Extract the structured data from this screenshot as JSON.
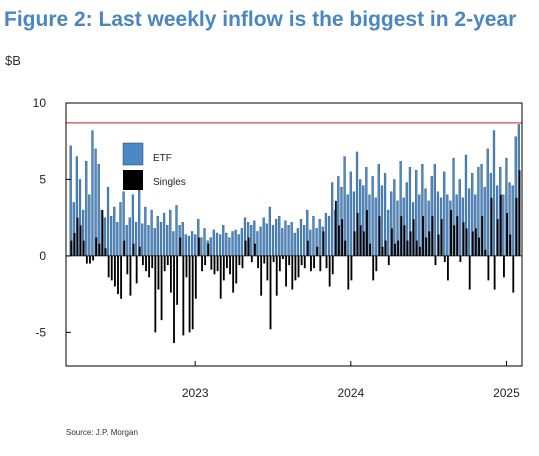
{
  "title": "Figure 2: Last weekly inflow is the biggest in 2-year",
  "unit_label": "$B",
  "source": "Source: J.P. Morgan",
  "colors": {
    "title": "#4a86c0",
    "etf": "#4b89c4",
    "singles": "#000000",
    "reference_line": "#c0504d",
    "axis": "#000000"
  },
  "chart_data": {
    "type": "bar",
    "title": "Figure 2: Last weekly inflow is the biggest in 2-year",
    "ylabel": "$B",
    "xlabel": "",
    "ylim": [
      -7.2,
      10
    ],
    "xlim": [
      2022.17,
      2025.1
    ],
    "yticks": [
      10,
      5,
      0,
      -5
    ],
    "xticks": [
      {
        "x": 2023,
        "label": "2023"
      },
      {
        "x": 2024,
        "label": "2024"
      },
      {
        "x": 2025,
        "label": "2025"
      }
    ],
    "reference_line": {
      "y": 8.7
    },
    "legend": {
      "position": "top-left",
      "entries": [
        "ETF",
        "Singles"
      ]
    },
    "grid": false,
    "x": [
      2022.2,
      2022.22,
      2022.24,
      2022.26,
      2022.28,
      2022.3,
      2022.32,
      2022.34,
      2022.36,
      2022.38,
      2022.4,
      2022.42,
      2022.44,
      2022.46,
      2022.48,
      2022.5,
      2022.52,
      2022.54,
      2022.56,
      2022.58,
      2022.6,
      2022.62,
      2022.64,
      2022.66,
      2022.68,
      2022.7,
      2022.72,
      2022.74,
      2022.76,
      2022.78,
      2022.8,
      2022.82,
      2022.84,
      2022.86,
      2022.88,
      2022.9,
      2022.92,
      2022.94,
      2022.96,
      2022.98,
      2023.0,
      2023.02,
      2023.04,
      2023.06,
      2023.08,
      2023.1,
      2023.12,
      2023.14,
      2023.16,
      2023.18,
      2023.2,
      2023.22,
      2023.24,
      2023.26,
      2023.28,
      2023.3,
      2023.32,
      2023.34,
      2023.36,
      2023.38,
      2023.4,
      2023.42,
      2023.44,
      2023.46,
      2023.48,
      2023.5,
      2023.52,
      2023.54,
      2023.56,
      2023.58,
      2023.6,
      2023.62,
      2023.64,
      2023.66,
      2023.68,
      2023.7,
      2023.72,
      2023.74,
      2023.76,
      2023.78,
      2023.8,
      2023.82,
      2023.84,
      2023.86,
      2023.88,
      2023.9,
      2023.92,
      2023.94,
      2023.96,
      2023.98,
      2024.0,
      2024.02,
      2024.04,
      2024.06,
      2024.08,
      2024.1,
      2024.12,
      2024.14,
      2024.16,
      2024.18,
      2024.2,
      2024.22,
      2024.24,
      2024.26,
      2024.28,
      2024.3,
      2024.32,
      2024.34,
      2024.36,
      2024.38,
      2024.4,
      2024.42,
      2024.44,
      2024.46,
      2024.48,
      2024.5,
      2024.52,
      2024.54,
      2024.56,
      2024.58,
      2024.6,
      2024.62,
      2024.64,
      2024.66,
      2024.68,
      2024.7,
      2024.72,
      2024.74,
      2024.76,
      2024.78,
      2024.8,
      2024.82,
      2024.84,
      2024.86,
      2024.88,
      2024.9,
      2024.92,
      2024.94,
      2024.96,
      2024.98,
      2025.0,
      2025.02,
      2025.04,
      2025.06,
      2025.08
    ],
    "series": [
      {
        "name": "ETF",
        "values": [
          7.2,
          3.5,
          6.5,
          5.0,
          3.0,
          6.2,
          4.0,
          8.2,
          7.0,
          6.0,
          3.0,
          2.5,
          4.5,
          2.6,
          3.2,
          2.2,
          3.5,
          4.2,
          2.0,
          2.5,
          4.0,
          2.2,
          4.5,
          2.1,
          3.2,
          2.0,
          3.0,
          1.8,
          2.6,
          2.2,
          2.8,
          2.0,
          3.0,
          1.6,
          3.3,
          2.0,
          2.2,
          1.4,
          1.3,
          1.6,
          1.4,
          2.4,
          1.2,
          1.8,
          1.0,
          1.2,
          1.7,
          1.5,
          1.4,
          2.0,
          1.5,
          1.2,
          1.6,
          1.7,
          1.4,
          1.8,
          2.5,
          2.2,
          2.0,
          2.3,
          1.6,
          1.9,
          2.5,
          2.1,
          3.2,
          2.0,
          2.4,
          2.6,
          1.8,
          2.3,
          2.0,
          2.2,
          1.5,
          1.8,
          2.4,
          2.0,
          3.0,
          1.7,
          2.6,
          1.8,
          2.4,
          1.9,
          2.8,
          2.6,
          4.8,
          3.0,
          5.2,
          4.5,
          6.5,
          4.0,
          5.5,
          4.2,
          6.8,
          5.0,
          4.6,
          5.8,
          4.0,
          5.2,
          3.8,
          6.0,
          4.6,
          5.4,
          3.0,
          4.2,
          5.0,
          3.6,
          6.2,
          3.8,
          4.8,
          5.8,
          3.5,
          5.6,
          4.0,
          6.0,
          4.4,
          3.6,
          5.2,
          6.0,
          4.2,
          3.8,
          5.5,
          4.0,
          3.6,
          6.4,
          4.0,
          5.0,
          3.8,
          6.6,
          4.4,
          5.4,
          4.0,
          5.8,
          6.0,
          4.5,
          7.0,
          5.4,
          8.2,
          4.6,
          5.8,
          4.0,
          6.4,
          4.8,
          4.6,
          7.8,
          8.6
        ]
      },
      {
        "name": "Singles",
        "values": [
          1.0,
          1.5,
          2.5,
          2.0,
          1.0,
          -0.5,
          -0.5,
          -0.3,
          1.2,
          0.8,
          3.0,
          0.5,
          -1.4,
          -1.6,
          -2.0,
          -2.5,
          -2.8,
          1.0,
          -1.2,
          -2.6,
          0.8,
          -1.8,
          0.6,
          -0.6,
          -1.0,
          -1.4,
          -0.8,
          -5.0,
          -2.2,
          -4.2,
          -1.0,
          -0.6,
          -2.4,
          -5.7,
          -3.2,
          1.2,
          -5.2,
          -1.4,
          -5.0,
          -4.8,
          -2.8,
          1.2,
          -1.0,
          -0.6,
          0.8,
          -0.9,
          -1.2,
          -1.0,
          -2.8,
          -1.6,
          -0.8,
          -1.2,
          -2.4,
          -1.8,
          -0.6,
          -0.8,
          1.0,
          1.2,
          -0.4,
          0.8,
          -0.8,
          -2.6,
          -0.5,
          -1.6,
          -4.8,
          -0.4,
          -2.6,
          -1.0,
          -0.2,
          -2.0,
          -0.6,
          -2.2,
          -1.6,
          -1.4,
          -0.6,
          -0.8,
          1.0,
          -1.0,
          -0.8,
          0.6,
          -1.0,
          1.6,
          -0.8,
          -2.0,
          -1.2,
          3.6,
          2.0,
          2.4,
          1.0,
          -2.2,
          -1.6,
          1.6,
          2.8,
          2.0,
          1.6,
          3.0,
          0.8,
          -1.6,
          -1.0,
          2.6,
          0.6,
          1.0,
          -0.6,
          1.8,
          0.8,
          1.0,
          2.6,
          2.0,
          1.0,
          1.6,
          2.4,
          1.0,
          0.6,
          2.6,
          1.2,
          1.6,
          2.6,
          -0.6,
          1.4,
          2.4,
          -0.4,
          -1.6,
          3.0,
          2.0,
          2.6,
          -0.4,
          2.2,
          1.8,
          -2.2,
          1.6,
          1.8,
          1.2,
          2.6,
          0.4,
          -1.6,
          3.8,
          -2.2,
          2.4,
          4.0,
          -1.4,
          2.8,
          1.4,
          -2.4,
          3.8,
          5.6
        ]
      }
    ]
  }
}
